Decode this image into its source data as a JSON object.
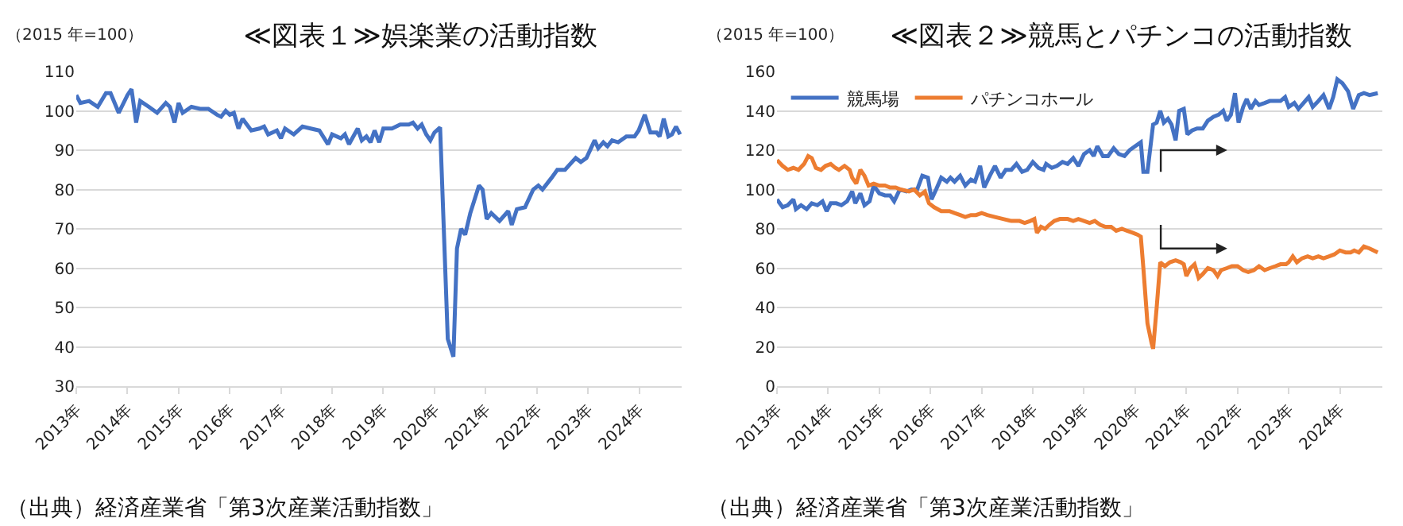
{
  "chart_data": [
    {
      "type": "line",
      "title": "≪図表１≫娯楽業の活動指数",
      "ylabel": "（2015 年=100）",
      "annotations": [
        "（出典）経済産業省「第3次産業活動指数」"
      ],
      "xlim": [
        2013,
        2024.83
      ],
      "ylim": [
        30,
        110
      ],
      "yticks": [
        30,
        40,
        50,
        60,
        70,
        80,
        90,
        100,
        110
      ],
      "xticks": [
        {
          "value": 2013,
          "label": "2013年"
        },
        {
          "value": 2014,
          "label": "2014年"
        },
        {
          "value": 2015,
          "label": "2015年"
        },
        {
          "value": 2016,
          "label": "2016年"
        },
        {
          "value": 2017,
          "label": "2017年"
        },
        {
          "value": 2018,
          "label": "2018年"
        },
        {
          "value": 2019,
          "label": "2019年"
        },
        {
          "value": 2020,
          "label": "2020年"
        },
        {
          "value": 2021,
          "label": "2021年"
        },
        {
          "value": 2022,
          "label": "2022年"
        },
        {
          "value": 2023,
          "label": "2023年"
        },
        {
          "value": 2024,
          "label": "2024年"
        }
      ],
      "grid": "y",
      "legend": false,
      "marker": "none",
      "line_style": "solid",
      "series": [
        {
          "color": "#4472c4",
          "x": [
            2013,
            2013.08,
            2013.25,
            2013.42,
            2013.58,
            2013.67,
            2013.83,
            2014,
            2014.08,
            2014.17,
            2014.25,
            2014.42,
            2014.58,
            2014.75,
            2014.83,
            2014.92,
            2015,
            2015.08,
            2015.25,
            2015.42,
            2015.58,
            2015.75,
            2015.83,
            2015.92,
            2016,
            2016.08,
            2016.17,
            2016.25,
            2016.42,
            2016.58,
            2016.67,
            2016.75,
            2016.92,
            2017,
            2017.08,
            2017.25,
            2017.42,
            2017.58,
            2017.75,
            2017.92,
            2018,
            2018.17,
            2018.25,
            2018.33,
            2018.5,
            2018.58,
            2018.67,
            2018.75,
            2018.83,
            2018.92,
            2019,
            2019.17,
            2019.33,
            2019.5,
            2019.58,
            2019.67,
            2019.75,
            2019.84,
            2019.92,
            2020,
            2020.11,
            2020.26,
            2020.37,
            2020.44,
            2020.52,
            2020.6,
            2020.7,
            2020.87,
            2020.94,
            2021.02,
            2021.11,
            2021.27,
            2021.44,
            2021.51,
            2021.61,
            2021.77,
            2021.93,
            2022.03,
            2022.11,
            2022.29,
            2022.4,
            2022.55,
            2022.76,
            2022.86,
            2022.97,
            2023.13,
            2023.2,
            2023.3,
            2023.38,
            2023.47,
            2023.59,
            2023.75,
            2023.91,
            2023.99,
            2024.11,
            2024.22,
            2024.34,
            2024.4,
            2024.48,
            2024.57,
            2024.64,
            2024.72,
            2024.8
          ],
          "values": [
            104,
            102,
            102.5,
            101,
            104.5,
            104.5,
            99.5,
            104,
            105.5,
            97,
            102.5,
            101,
            99.5,
            102,
            101,
            97,
            102,
            99.5,
            101,
            100.5,
            100.5,
            99,
            98.5,
            100,
            99,
            99.5,
            95.5,
            98,
            95,
            95.5,
            96,
            94,
            95,
            93,
            95.5,
            94,
            96,
            95.5,
            95,
            91.5,
            94,
            93,
            94,
            91.5,
            95.5,
            92.5,
            93.5,
            92,
            95,
            92,
            95.5,
            95.5,
            96.5,
            96.5,
            97,
            95.5,
            96.5,
            94,
            92.5,
            94.5,
            95.8,
            42,
            37.5,
            65,
            70,
            68.5,
            74,
            81,
            80,
            72.5,
            74,
            72,
            74.5,
            71,
            75,
            75.5,
            80,
            81,
            80,
            83,
            85,
            85,
            88,
            87,
            88,
            92.5,
            90.5,
            92,
            91,
            92.5,
            92,
            93.5,
            93.5,
            95,
            99,
            94.5,
            94.5,
            93.5,
            98,
            93.5,
            94,
            96,
            94
          ]
        }
      ]
    },
    {
      "type": "line",
      "title": "≪図表２≫競馬とパチンコの活動指数",
      "ylabel": "（2015 年=100）",
      "annotations": [
        "（出典）経済産業省「第3次産業活動指数」"
      ],
      "xlim": [
        2013,
        2024.83
      ],
      "ylim": [
        0,
        160
      ],
      "yticks": [
        0,
        20,
        40,
        60,
        80,
        100,
        120,
        140,
        160
      ],
      "xticks": [
        {
          "value": 2013,
          "label": "2013年"
        },
        {
          "value": 2014,
          "label": "2014年"
        },
        {
          "value": 2015,
          "label": "2015年"
        },
        {
          "value": 2016,
          "label": "2016年"
        },
        {
          "value": 2017,
          "label": "2017年"
        },
        {
          "value": 2018,
          "label": "2018年"
        },
        {
          "value": 2019,
          "label": "2019年"
        },
        {
          "value": 2020,
          "label": "2020年"
        },
        {
          "value": 2021,
          "label": "2021年"
        },
        {
          "value": 2022,
          "label": "2022年"
        },
        {
          "value": 2023,
          "label": "2023年"
        },
        {
          "value": 2024,
          "label": "2024年"
        }
      ],
      "grid": "y",
      "legend": "top left",
      "marker": "none",
      "line_style": "solid",
      "series": [
        {
          "name": "競馬場",
          "color": "#4472c4",
          "x": [
            2013,
            2013.11,
            2013.21,
            2013.32,
            2013.37,
            2013.47,
            2013.58,
            2013.68,
            2013.79,
            2013.89,
            2013.97,
            2014.05,
            2014.16,
            2014.26,
            2014.37,
            2014.47,
            2014.53,
            2014.63,
            2014.71,
            2014.81,
            2014.89,
            2015,
            2015.11,
            2015.21,
            2015.29,
            2015.4,
            2015.53,
            2015.63,
            2015.74,
            2015.84,
            2015.95,
            2016.02,
            2016.11,
            2016.21,
            2016.32,
            2016.39,
            2016.47,
            2016.58,
            2016.68,
            2016.79,
            2016.87,
            2016.97,
            2017.05,
            2017.16,
            2017.26,
            2017.37,
            2017.47,
            2017.58,
            2017.68,
            2017.79,
            2017.89,
            2018,
            2018.11,
            2018.21,
            2018.26,
            2018.37,
            2018.47,
            2018.58,
            2018.68,
            2018.79,
            2018.89,
            2019,
            2019.11,
            2019.19,
            2019.26,
            2019.37,
            2019.47,
            2019.58,
            2019.68,
            2019.79,
            2019.89,
            2020,
            2020.11,
            2020.16,
            2020.24,
            2020.35,
            2020.42,
            2020.49,
            2020.56,
            2020.64,
            2020.71,
            2020.79,
            2020.86,
            2020.95,
            2021.02,
            2021.11,
            2021.21,
            2021.32,
            2021.42,
            2021.53,
            2021.63,
            2021.72,
            2021.79,
            2021.87,
            2021.95,
            2022.02,
            2022.11,
            2022.18,
            2022.26,
            2022.35,
            2022.42,
            2022.53,
            2022.63,
            2022.74,
            2022.84,
            2022.93,
            2023,
            2023.11,
            2023.19,
            2023.29,
            2023.39,
            2023.47,
            2023.58,
            2023.68,
            2023.79,
            2023.87,
            2023.95,
            2024.05,
            2024.16,
            2024.26,
            2024.37,
            2024.47,
            2024.58,
            2024.74
          ],
          "values": [
            95,
            91,
            92,
            95,
            90,
            92,
            90,
            93,
            92,
            94,
            89,
            93,
            93,
            92,
            94,
            99,
            93,
            98,
            92,
            94,
            102,
            98,
            97,
            97,
            94,
            100,
            99,
            100,
            100,
            107,
            106,
            95,
            100,
            106,
            104,
            106,
            104,
            107,
            102,
            105,
            104,
            112,
            101,
            107,
            112,
            106,
            110,
            110,
            113,
            109,
            110,
            114,
            111,
            110,
            113,
            111,
            112,
            114,
            113,
            116,
            112,
            118,
            120,
            117,
            122,
            117,
            117,
            121,
            118,
            117,
            120,
            122,
            124,
            109,
            109,
            133,
            134,
            140,
            134,
            136,
            133,
            125,
            140,
            141,
            128,
            130,
            131,
            131,
            135,
            137,
            138,
            140,
            135,
            138,
            149,
            134,
            142,
            146,
            141,
            145,
            143,
            144,
            145,
            145,
            145,
            147,
            142,
            144,
            141,
            144,
            147,
            142,
            145,
            148,
            141,
            147,
            156,
            154,
            150,
            141,
            148,
            149,
            148,
            149
          ]
        },
        {
          "name": "パチンコホール",
          "color": "#ed7d31",
          "x": [
            2013,
            2013.11,
            2013.21,
            2013.32,
            2013.42,
            2013.53,
            2013.61,
            2013.68,
            2013.76,
            2013.86,
            2013.95,
            2014.05,
            2014.14,
            2014.21,
            2014.32,
            2014.42,
            2014.47,
            2014.55,
            2014.63,
            2014.71,
            2014.79,
            2014.89,
            2015,
            2015.11,
            2015.21,
            2015.32,
            2015.42,
            2015.58,
            2015.68,
            2015.79,
            2015.89,
            2015.97,
            2016.07,
            2016.21,
            2016.37,
            2016.47,
            2016.58,
            2016.68,
            2016.79,
            2016.89,
            2017,
            2017.11,
            2017.26,
            2017.42,
            2017.58,
            2017.74,
            2017.84,
            2017.95,
            2018.03,
            2018.08,
            2018.16,
            2018.24,
            2018.32,
            2018.42,
            2018.53,
            2018.68,
            2018.79,
            2018.89,
            2019,
            2019.11,
            2019.21,
            2019.32,
            2019.42,
            2019.53,
            2019.63,
            2019.74,
            2019.84,
            2019.95,
            2020.05,
            2020.11,
            2020.16,
            2020.24,
            2020.32,
            2020.35,
            2020.42,
            2020.49,
            2020.58,
            2020.68,
            2020.79,
            2020.89,
            2020.95,
            2021,
            2021.08,
            2021.16,
            2021.24,
            2021.32,
            2021.42,
            2021.53,
            2021.61,
            2021.68,
            2021.79,
            2021.89,
            2022,
            2022.11,
            2022.21,
            2022.32,
            2022.42,
            2022.53,
            2022.63,
            2022.74,
            2022.84,
            2022.95,
            2023,
            2023.08,
            2023.16,
            2023.26,
            2023.37,
            2023.47,
            2023.58,
            2023.68,
            2023.79,
            2023.89,
            2024,
            2024.11,
            2024.21,
            2024.28,
            2024.37,
            2024.47,
            2024.58,
            2024.66,
            2024.74
          ],
          "values": [
            115,
            112,
            110,
            111,
            110,
            113,
            117,
            116,
            111,
            110,
            112,
            113,
            111,
            110,
            112,
            110,
            106,
            103,
            110,
            107,
            102,
            103,
            102,
            102,
            101,
            101,
            100,
            99,
            100,
            97,
            99,
            93,
            91,
            89,
            89,
            88,
            87,
            86,
            87,
            87,
            88,
            87,
            86,
            85,
            84,
            84,
            83,
            84,
            85,
            78,
            81,
            80,
            82,
            84,
            85,
            85,
            84,
            85,
            84,
            83,
            84,
            82,
            81,
            81,
            79,
            80,
            79,
            78,
            77,
            76,
            60,
            32,
            22,
            19,
            40,
            63,
            61,
            63,
            64,
            63,
            62,
            56,
            60,
            62,
            55,
            57,
            60,
            59,
            56,
            59,
            60,
            61,
            61,
            59,
            58,
            59,
            61,
            59,
            60,
            61,
            62,
            62,
            63,
            66,
            63,
            65,
            66,
            65,
            66,
            65,
            66,
            67,
            69,
            68,
            68,
            69,
            68,
            71,
            70,
            69,
            68
          ]
        }
      ]
    }
  ]
}
